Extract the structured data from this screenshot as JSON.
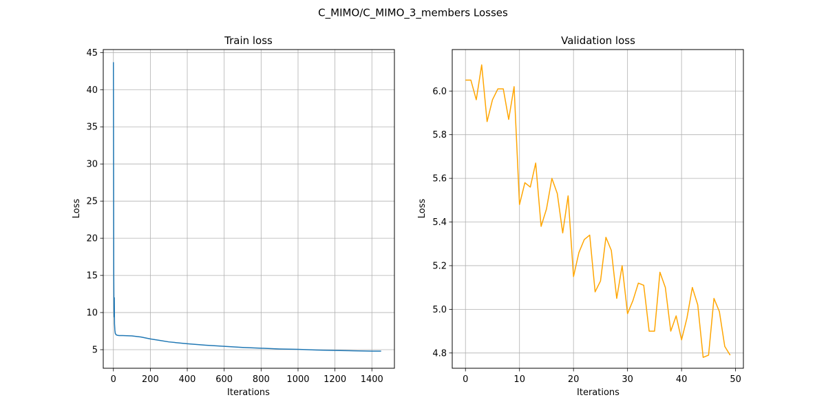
{
  "figure": {
    "suptitle": "C_MIMO/C_MIMO_3_members Losses"
  },
  "chart_data": [
    {
      "type": "line",
      "title": "Train loss",
      "xlabel": "Iterations",
      "ylabel": "Loss",
      "xlim": [
        -55,
        1522
      ],
      "ylim": [
        2.5,
        45.4
      ],
      "xticks": [
        0,
        200,
        400,
        600,
        800,
        1000,
        1200,
        1400
      ],
      "yticks": [
        5,
        10,
        15,
        20,
        25,
        30,
        35,
        40,
        45
      ],
      "grid": true,
      "legend": "none",
      "series": [
        {
          "color": "#1f77b4",
          "x": [
            0,
            1,
            2,
            3,
            4,
            5,
            6,
            8,
            10,
            15,
            20,
            30,
            50,
            100,
            150,
            200,
            250,
            300,
            400,
            500,
            600,
            700,
            800,
            900,
            1000,
            1100,
            1200,
            1300,
            1400,
            1450
          ],
          "y": [
            43.7,
            30.0,
            15.0,
            10.5,
            9.4,
            12.0,
            8.5,
            7.6,
            7.2,
            7.0,
            6.95,
            6.9,
            6.9,
            6.85,
            6.7,
            6.45,
            6.25,
            6.05,
            5.8,
            5.6,
            5.45,
            5.3,
            5.2,
            5.1,
            5.05,
            4.95,
            4.9,
            4.85,
            4.8,
            4.8
          ]
        }
      ]
    },
    {
      "type": "line",
      "title": "Validation loss",
      "xlabel": "Iterations",
      "ylabel": "Loss",
      "xlim": [
        -2.45,
        51.45
      ],
      "ylim": [
        4.73,
        6.19
      ],
      "xticks": [
        0,
        10,
        20,
        30,
        40,
        50
      ],
      "yticks": [
        4.8,
        5.0,
        5.2,
        5.4,
        5.6,
        5.8,
        6.0
      ],
      "grid": true,
      "legend": "none",
      "series": [
        {
          "color": "#ffa500",
          "x": [
            0,
            1,
            2,
            3,
            4,
            5,
            6,
            7,
            8,
            9,
            10,
            11,
            12,
            13,
            14,
            15,
            16,
            17,
            18,
            19,
            20,
            21,
            22,
            23,
            24,
            25,
            26,
            27,
            28,
            29,
            30,
            31,
            32,
            33,
            34,
            35,
            36,
            37,
            38,
            39,
            40,
            41,
            42,
            43,
            44,
            45,
            46,
            47,
            48,
            49
          ],
          "y": [
            6.05,
            6.05,
            5.96,
            6.12,
            5.86,
            5.96,
            6.01,
            6.01,
            5.87,
            6.02,
            5.48,
            5.58,
            5.56,
            5.67,
            5.38,
            5.46,
            5.6,
            5.53,
            5.35,
            5.52,
            5.15,
            5.26,
            5.32,
            5.34,
            5.08,
            5.13,
            5.33,
            5.27,
            5.05,
            5.2,
            4.98,
            5.04,
            5.12,
            5.11,
            4.9,
            4.9,
            5.17,
            5.1,
            4.9,
            4.97,
            4.86,
            4.96,
            5.1,
            5.02,
            4.78,
            4.79,
            5.05,
            4.99,
            4.83,
            4.79
          ]
        }
      ]
    }
  ]
}
